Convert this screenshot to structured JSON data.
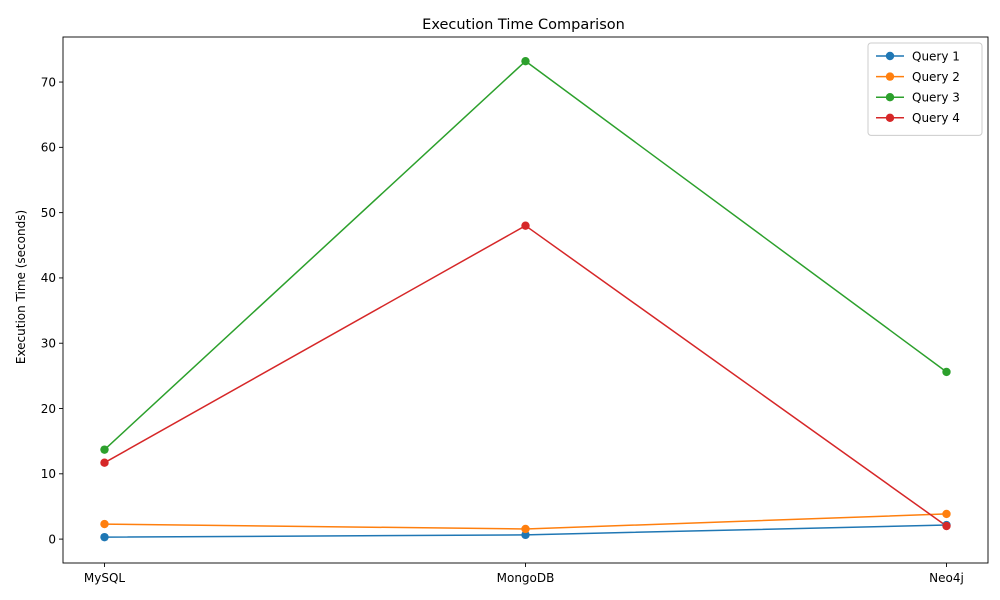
{
  "chart_data": {
    "type": "line",
    "title": "Execution Time Comparison",
    "xlabel": "",
    "ylabel": "Execution Time (seconds)",
    "categories": [
      "MySQL",
      "MongoDB",
      "Neo4j"
    ],
    "ylim": [
      -3.66,
      76.9
    ],
    "yticks": [
      0,
      10,
      20,
      30,
      40,
      50,
      60,
      70
    ],
    "grid": false,
    "legend_position": "top-right",
    "marker": "circle",
    "series": [
      {
        "name": "Query 1",
        "color": "#1f77b4",
        "values": [
          0.3,
          0.65,
          2.15
        ]
      },
      {
        "name": "Query 2",
        "color": "#ff7f0e",
        "values": [
          2.3,
          1.55,
          3.85
        ]
      },
      {
        "name": "Query 3",
        "color": "#2ca02c",
        "values": [
          13.7,
          73.2,
          25.6
        ]
      },
      {
        "name": "Query 4",
        "color": "#d62728",
        "values": [
          11.7,
          48.0,
          2.0
        ]
      }
    ]
  }
}
